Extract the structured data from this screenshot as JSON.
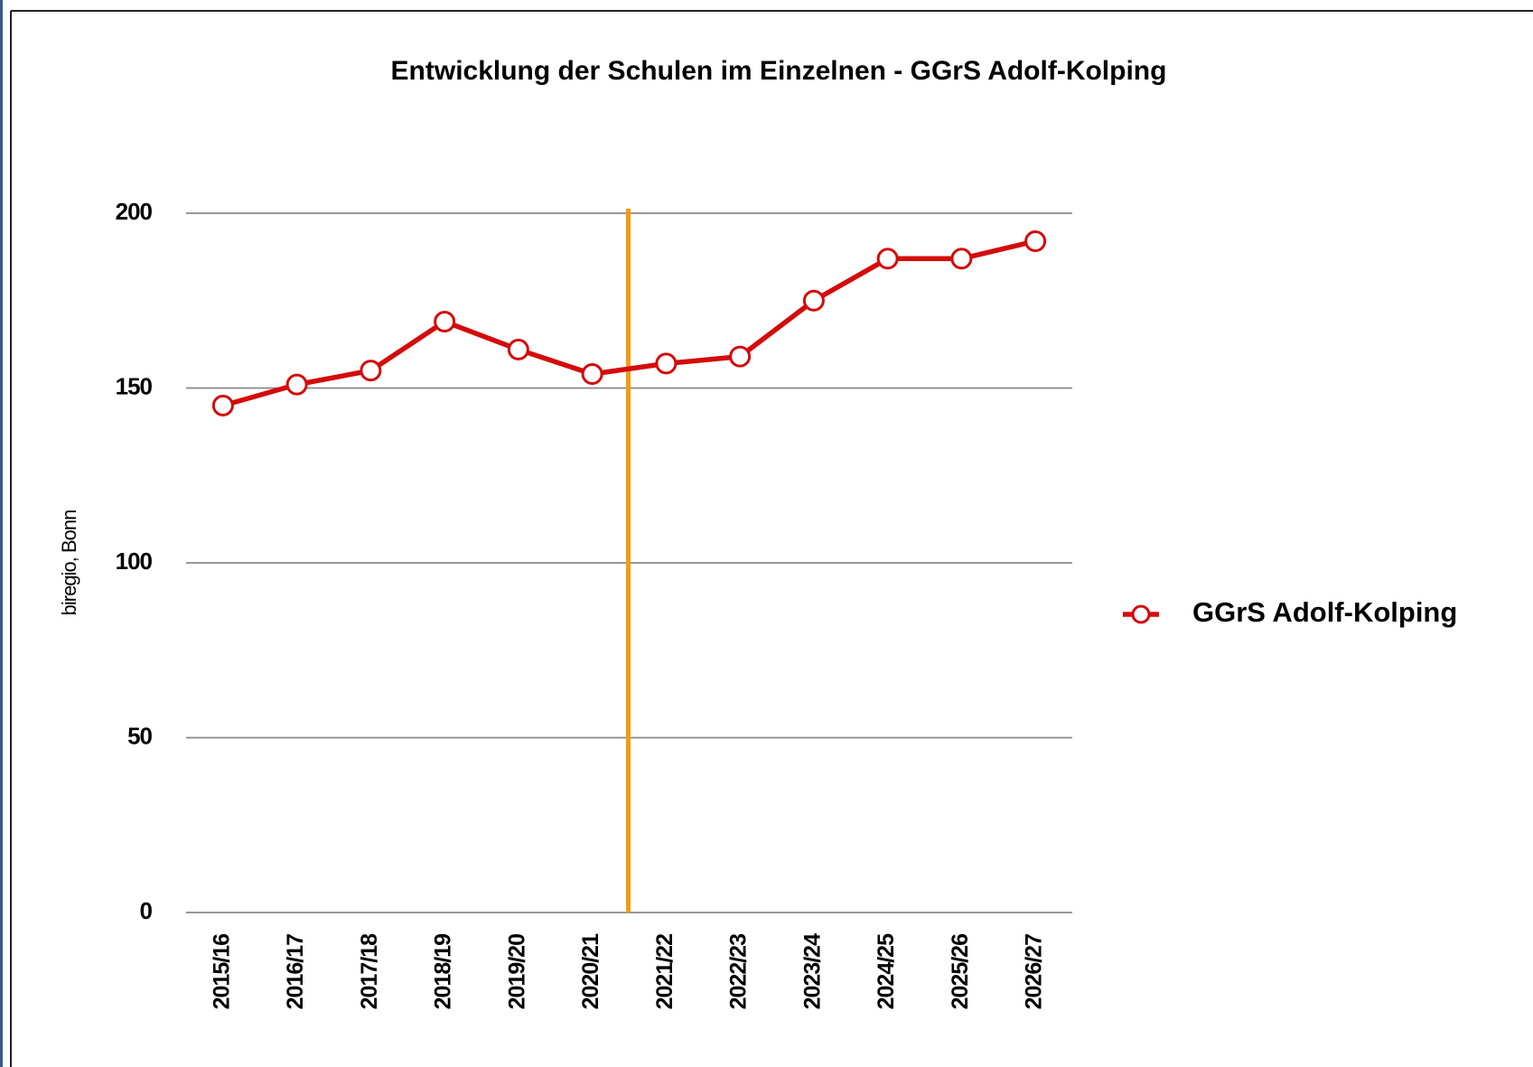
{
  "chart_data": {
    "type": "line",
    "title": "Entwicklung der Schulen im Einzelnen - GGrS Adolf-Kolping",
    "y_label": "biregio, Bonn",
    "categories": [
      "2015/16",
      "2016/17",
      "2017/18",
      "2018/19",
      "2019/20",
      "2020/21",
      "2021/22",
      "2022/23",
      "2023/24",
      "2024/25",
      "2025/26",
      "2026/27"
    ],
    "series": [
      {
        "name": "GGrS Adolf-Kolping",
        "color": "#d40b0b",
        "values": [
          145,
          151,
          155,
          169,
          161,
          154,
          157,
          159,
          175,
          187,
          187,
          192
        ]
      }
    ],
    "ylim": [
      0,
      200
    ],
    "yticks": [
      0,
      50,
      100,
      150,
      200
    ],
    "grid": true,
    "legend": "right"
  }
}
